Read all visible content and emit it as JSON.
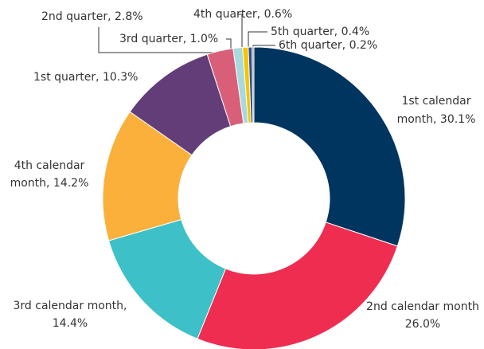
{
  "chart_data": {
    "type": "donut",
    "labels": [
      [
        "1st calendar",
        "month, 30.1%"
      ],
      [
        "2nd calendar month",
        "26.0%"
      ],
      [
        "3rd calendar month,",
        "14.4%"
      ],
      [
        "4th calendar",
        "month, 14.2%"
      ],
      [
        "1st quarter, 10.3%"
      ],
      [
        "2nd quarter, 2.8%"
      ],
      [
        "3rd quarter, 1.0%"
      ],
      [
        "4th quarter, 0.6%"
      ],
      [
        "5th quarter, 0.4%"
      ],
      [
        "6th quarter, 0.2%"
      ]
    ],
    "values": [
      30.1,
      26.0,
      14.4,
      14.2,
      10.3,
      2.8,
      1.0,
      0.6,
      0.4,
      0.2
    ],
    "colors": [
      "#00355f",
      "#ef2d51",
      "#3dc0c8",
      "#fbb03b",
      "#623d78",
      "#d95f78",
      "#a9d9dc",
      "#f6c400",
      "#2b4e8e",
      "#9a9a9a"
    ]
  }
}
